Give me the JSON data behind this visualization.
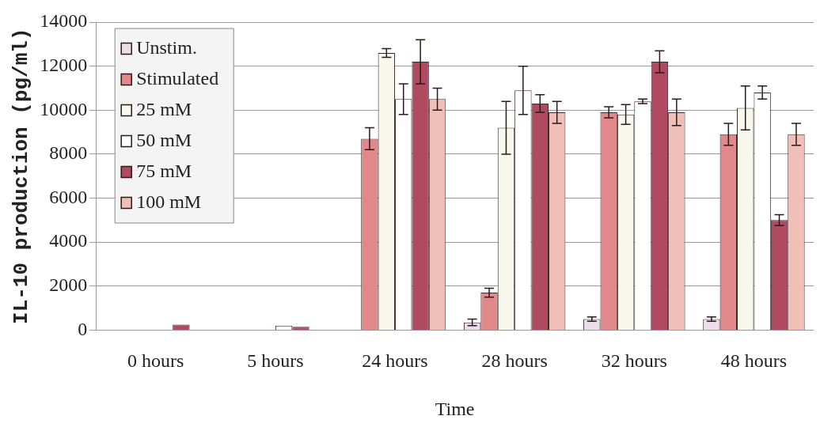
{
  "chart_data": {
    "type": "bar",
    "xlabel": "Time",
    "ylabel": "IL-10 production (pg/ml)",
    "categories": [
      "0 hours",
      "5 hours",
      "24 hours",
      "28 hours",
      "32 hours",
      "48 hours"
    ],
    "series": [
      {
        "name": "Unstim.",
        "color": "#ecdcee",
        "values": [
          null,
          null,
          null,
          350,
          500,
          500
        ],
        "errors": [
          null,
          null,
          null,
          150,
          100,
          100
        ]
      },
      {
        "name": "Stimulated",
        "color": "#e0888a",
        "values": [
          null,
          null,
          8700,
          1700,
          9900,
          8900
        ],
        "errors": [
          null,
          null,
          500,
          200,
          250,
          500
        ]
      },
      {
        "name": "25 mM",
        "color": "#f8f8ec",
        "values": [
          null,
          null,
          12600,
          9200,
          9800,
          10100
        ],
        "errors": [
          null,
          null,
          200,
          1200,
          450,
          1000
        ]
      },
      {
        "name": "50 mM",
        "color": "#ffffff",
        "values": [
          null,
          200,
          10500,
          10900,
          10400,
          10800
        ],
        "errors": [
          null,
          null,
          700,
          1100,
          100,
          300
        ]
      },
      {
        "name": "75 mM",
        "color": "#b04a60",
        "values": [
          250,
          150,
          12200,
          10300,
          12200,
          5000
        ],
        "errors": [
          null,
          null,
          1000,
          400,
          500,
          250
        ]
      },
      {
        "name": "100 mM",
        "color": "#f0c0b8",
        "values": [
          null,
          null,
          10500,
          9900,
          9900,
          8900
        ],
        "errors": [
          null,
          null,
          500,
          500,
          600,
          500
        ]
      }
    ],
    "ylim": [
      0,
      14000
    ],
    "yticks": [
      0,
      2000,
      4000,
      6000,
      8000,
      10000,
      12000,
      14000
    ],
    "grid": "y",
    "legend": "top left"
  }
}
